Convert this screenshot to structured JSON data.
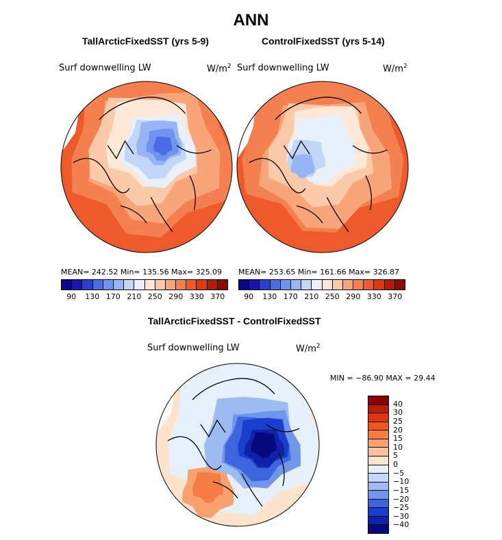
{
  "chart_data": [
    {
      "type": "heatmap",
      "projection": "north-polar-stereographic",
      "title": "TallArcticFixedSST (yrs 5-9)",
      "variable": "Surf downwelling LW",
      "units": "W/m",
      "units_sup": "2",
      "stats": {
        "mean": "242.52",
        "min": "135.56",
        "max": "325.09"
      },
      "stats_text": "MEAN= 242.52   Min= 135.56   Max= 325.09",
      "colorbar_ticks": [
        "90",
        "130",
        "170",
        "210",
        "250",
        "290",
        "330",
        "370"
      ],
      "colorbar_levels": [
        90,
        110,
        130,
        150,
        170,
        190,
        210,
        230,
        250,
        270,
        290,
        310,
        330,
        350,
        370
      ]
    },
    {
      "type": "heatmap",
      "projection": "north-polar-stereographic",
      "title": "ControlFixedSST (yrs 5-14)",
      "variable": "Surf downwelling LW",
      "units": "W/m",
      "units_sup": "2",
      "stats": {
        "mean": "253.65",
        "min": "161.66",
        "max": "326.87"
      },
      "stats_text": "MEAN= 253.65   Min= 161.66   Max= 326.87",
      "colorbar_ticks": [
        "90",
        "130",
        "170",
        "210",
        "250",
        "290",
        "330",
        "370"
      ],
      "colorbar_levels": [
        90,
        110,
        130,
        150,
        170,
        190,
        210,
        230,
        250,
        270,
        290,
        310,
        330,
        350,
        370
      ]
    },
    {
      "type": "heatmap",
      "projection": "north-polar-stereographic",
      "title": "TallArcticFixedSST - ControlFixedSST",
      "variable": "Surf downwelling LW",
      "units": "W/m",
      "units_sup": "2",
      "stats": {
        "min": "-86.90",
        "max": "29.44"
      },
      "stats_text": "MIN = −86.90  MAX =   29.44",
      "colorbar_ticks": [
        "40",
        "30",
        "25",
        "20",
        "15",
        "10",
        "5",
        "0",
        "−5",
        "−10",
        "−15",
        "−20",
        "−25",
        "−30",
        "−40"
      ],
      "colorbar_levels": [
        40,
        30,
        25,
        20,
        15,
        10,
        5,
        0,
        -5,
        -10,
        -15,
        -20,
        -25,
        -30,
        -40
      ]
    }
  ],
  "page": {
    "heading": "ANN"
  },
  "colors": {
    "abs_scale": [
      "#08088a",
      "#1515b8",
      "#2b3fd6",
      "#4a6ce6",
      "#6f93ee",
      "#97b4f4",
      "#c2d6fa",
      "#e8f0fc",
      "#fde7d6",
      "#fbcaa8",
      "#f8a57a",
      "#f4804f",
      "#ef5a2c",
      "#dd3a14",
      "#b21c0a",
      "#8b0c04"
    ],
    "diff_scale": [
      "#8b0000",
      "#b81c0a",
      "#dc3510",
      "#f2561f",
      "#f67c45",
      "#f8a06e",
      "#fac29c",
      "#fde2cc",
      "#e6f0fb",
      "#c4d8f7",
      "#9cbbf1",
      "#6f96ea",
      "#3d66de",
      "#1a3fcf",
      "#0f22a8",
      "#070a7a"
    ]
  }
}
